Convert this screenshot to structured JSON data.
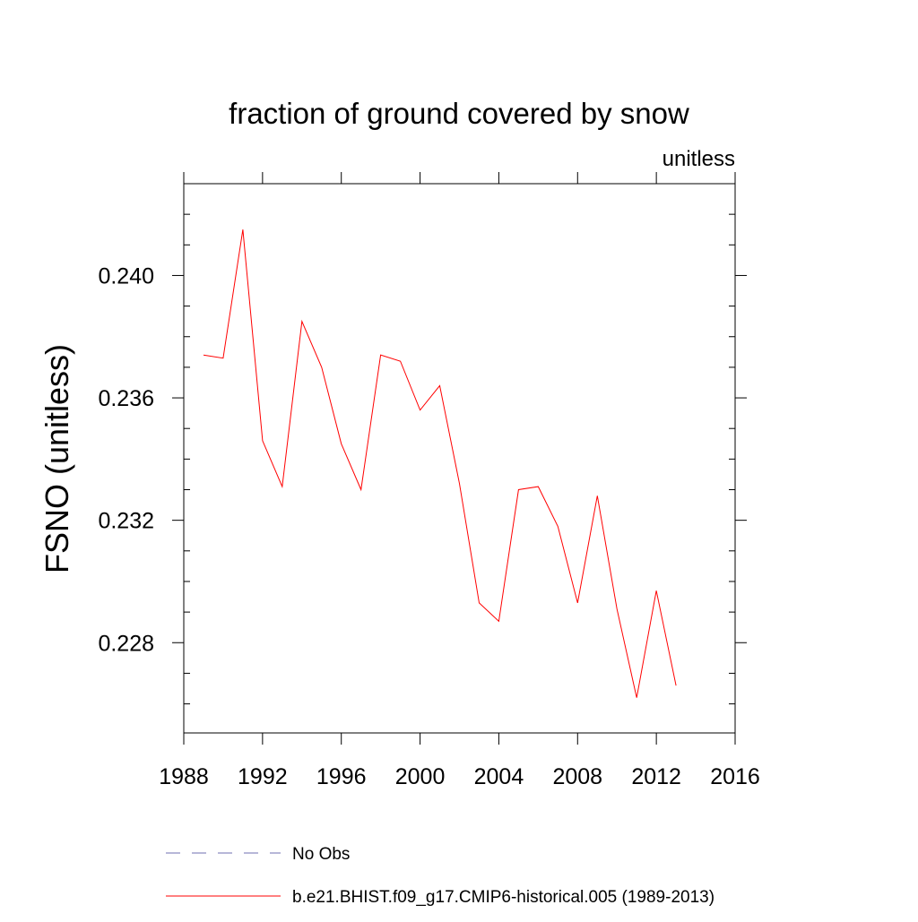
{
  "chart_data": {
    "type": "line",
    "title": "fraction of ground covered by snow",
    "units_label": "unitless",
    "xlabel": "",
    "ylabel": "FSNO  (unitless)",
    "xlim": [
      1988,
      2016
    ],
    "ylim": [
      0.22505,
      0.243
    ],
    "x_ticks": [
      1988,
      1992,
      1996,
      2000,
      2004,
      2008,
      2012,
      2016
    ],
    "x_tick_labels": [
      "1988",
      "1992",
      "1996",
      "2000",
      "2004",
      "2008",
      "2012",
      "2016"
    ],
    "y_ticks": [
      0.228,
      0.232,
      0.236,
      0.24
    ],
    "y_tick_labels": [
      "0.228",
      "0.232",
      "0.236",
      "0.240"
    ],
    "grid": false,
    "series": [
      {
        "name": "b.e21.BHIST.f09_g17.CMIP6-historical.005 (1989-2013)",
        "color": "#ff0000",
        "style": "solid",
        "x": [
          1989,
          1990,
          1991,
          1992,
          1993,
          1994,
          1995,
          1996,
          1997,
          1998,
          1999,
          2000,
          2001,
          2002,
          2003,
          2004,
          2005,
          2006,
          2007,
          2008,
          2009,
          2010,
          2011,
          2012,
          2013
        ],
        "values": [
          0.2374,
          0.2373,
          0.2415,
          0.2346,
          0.2331,
          0.2385,
          0.237,
          0.2345,
          0.233,
          0.2374,
          0.2372,
          0.2356,
          0.2364,
          0.2332,
          0.2293,
          0.2287,
          0.233,
          0.2331,
          0.2318,
          0.2293,
          0.2328,
          0.2291,
          0.2262,
          0.2297,
          0.2266
        ]
      }
    ],
    "legend": [
      {
        "label": "No Obs",
        "color": "#6f6fb0",
        "style": "dashed"
      },
      {
        "label": "b.e21.BHIST.f09_g17.CMIP6-historical.005 (1989-2013)",
        "color": "#ff0000",
        "style": "solid"
      }
    ],
    "legend_position": "bottom"
  }
}
